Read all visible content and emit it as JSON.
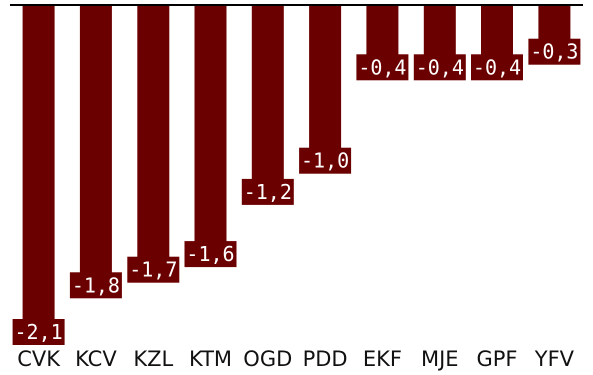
{
  "chart_data": {
    "type": "bar",
    "categories": [
      "CVK",
      "KCV",
      "KZL",
      "KTM",
      "OGD",
      "PDD",
      "EKF",
      "MJE",
      "GPF",
      "YFV"
    ],
    "values": [
      -2.1,
      -1.8,
      -1.7,
      -1.6,
      -1.2,
      -1.0,
      -0.4,
      -0.4,
      -0.4,
      -0.3
    ],
    "value_labels": [
      "-2,1",
      "-1,8",
      "-1,7",
      "-1,6",
      "-1,2",
      "-1,0",
      "-0,4",
      "-0,4",
      "-0,4",
      "-0,3"
    ],
    "title": "",
    "xlabel": "",
    "ylabel": "",
    "ylim": [
      -2.1,
      0
    ],
    "grid": false,
    "legend": "none",
    "colors": {
      "bar": "#6b0000",
      "label_bg": "#6b0000",
      "label_text": "#ffffff",
      "axis": "#000000"
    }
  }
}
